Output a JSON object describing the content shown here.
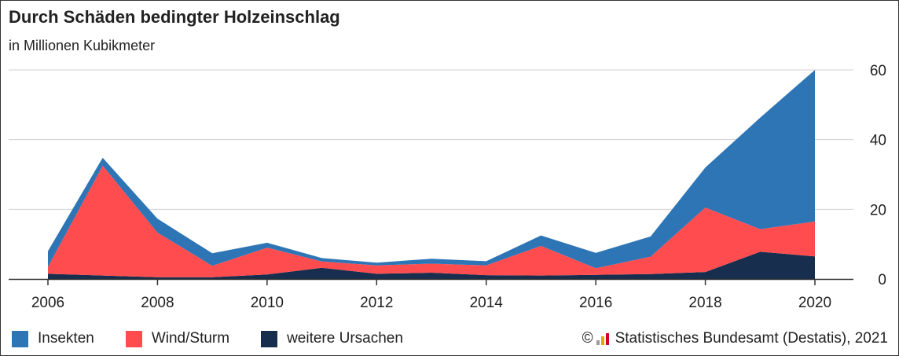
{
  "header": {
    "title": "Durch Schäden bedingter Holzeinschlag",
    "subtitle": "in Millionen Kubikmeter"
  },
  "colors": {
    "insekten": "#2e75b6",
    "wind": "#ff4c4f",
    "weitere": "#172e4e",
    "grid": "#d0d0d0",
    "axis": "#333333"
  },
  "chart_data": {
    "type": "area",
    "stacked": true,
    "x": [
      2006,
      2007,
      2008,
      2009,
      2010,
      2011,
      2012,
      2013,
      2014,
      2015,
      2016,
      2017,
      2018,
      2019,
      2020
    ],
    "series": [
      {
        "name": "weitere Ursachen",
        "color": "#172e4e",
        "values": [
          1.5,
          1.0,
          0.5,
          0.5,
          1.3,
          3.2,
          1.5,
          1.8,
          1.1,
          1.0,
          1.2,
          1.4,
          2.0,
          7.8,
          6.5
        ]
      },
      {
        "name": "Wind/Sturm",
        "color": "#ff4c4f",
        "values": [
          2.0,
          31.5,
          12.8,
          3.3,
          7.7,
          1.8,
          2.4,
          2.6,
          2.8,
          8.5,
          1.9,
          5.0,
          18.5,
          6.5,
          10.0
        ]
      },
      {
        "name": "Insekten",
        "color": "#2e75b6",
        "values": [
          4.5,
          2.3,
          4.0,
          3.6,
          1.4,
          1.0,
          0.8,
          1.4,
          1.2,
          3.0,
          4.4,
          5.8,
          11.5,
          32.0,
          43.5
        ]
      }
    ],
    "xticks": [
      "2006",
      "2008",
      "2010",
      "2012",
      "2014",
      "2016",
      "2018",
      "2020"
    ],
    "yticks": [
      "0",
      "20",
      "40",
      "60"
    ],
    "ylim": [
      0,
      60
    ],
    "xlim": [
      2006,
      2020
    ],
    "y_axis_position": "right",
    "grid": true,
    "legend_position": "bottom-left"
  },
  "legend": {
    "items": [
      {
        "label": "Insekten",
        "color": "#2e75b6"
      },
      {
        "label": "Wind/Sturm",
        "color": "#ff4c4f"
      },
      {
        "label": "weitere Ursachen",
        "color": "#172e4e"
      }
    ]
  },
  "source": {
    "copyright": "©",
    "text": "Statistisches Bundesamt (Destatis), 2021"
  }
}
